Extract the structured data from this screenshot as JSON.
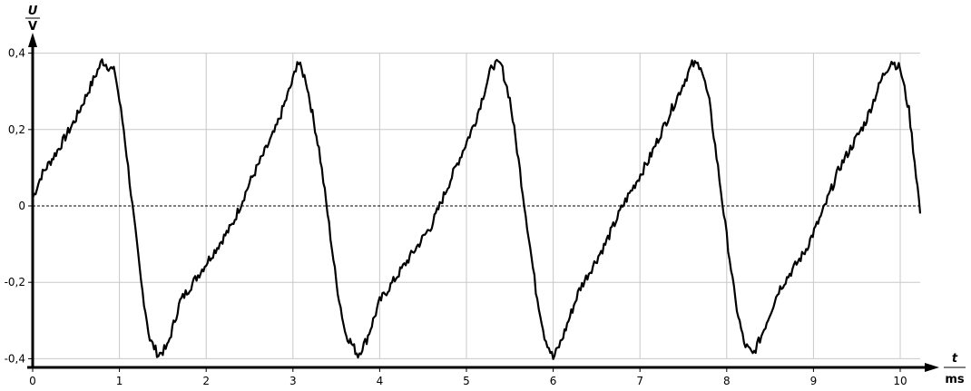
{
  "chart_data": {
    "type": "line",
    "title": "",
    "ylabel": {
      "symbol": "U",
      "unit": "V"
    },
    "xlabel": {
      "symbol": "t",
      "unit": "ms"
    },
    "xlim": [
      0,
      10.23
    ],
    "ylim": [
      -0.4,
      0.4
    ],
    "grid": true,
    "x_ticks": [
      0,
      1,
      2,
      3,
      4,
      5,
      6,
      7,
      8,
      9,
      10
    ],
    "x_tick_labels": [
      "0",
      "1",
      "2",
      "3",
      "4",
      "5",
      "6",
      "7",
      "8",
      "9",
      "10"
    ],
    "y_ticks": [
      0.4,
      0.2,
      0,
      -0.2,
      -0.4
    ],
    "y_tick_labels": [
      "0,4",
      "0,2",
      "0",
      "-0,2",
      "-0,4"
    ],
    "zero_line": "dotted",
    "line_color": "#000000",
    "grid_color": "#c8c8c8",
    "series": [
      {
        "x": [
          0,
          0.1,
          0.3,
          0.5,
          0.7,
          0.8,
          0.95,
          1.05,
          1.15,
          1.25,
          1.35,
          1.45,
          1.55,
          1.7,
          2.0,
          2.3,
          2.5,
          2.8,
          3.0,
          3.05,
          3.15,
          3.3,
          3.4,
          3.5,
          3.6,
          3.75,
          3.85,
          4.0,
          4.3,
          4.6,
          4.8,
          5.1,
          5.3,
          5.4,
          5.5,
          5.6,
          5.7,
          5.8,
          5.9,
          6.0,
          6.1,
          6.3,
          6.6,
          6.8,
          7.1,
          7.4,
          7.6,
          7.7,
          7.8,
          7.9,
          8.0,
          8.1,
          8.2,
          8.3,
          8.4,
          8.6,
          8.9,
          9.1,
          9.3,
          9.6,
          9.8,
          9.9,
          10.0,
          10.1,
          10.15,
          10.2,
          10.23
        ],
        "y": [
          0.02,
          0.08,
          0.15,
          0.23,
          0.33,
          0.38,
          0.35,
          0.2,
          0.0,
          -0.2,
          -0.35,
          -0.39,
          -0.37,
          -0.25,
          -0.15,
          -0.05,
          0.06,
          0.2,
          0.33,
          0.38,
          0.33,
          0.15,
          -0.02,
          -0.2,
          -0.33,
          -0.39,
          -0.35,
          -0.25,
          -0.15,
          -0.05,
          0.06,
          0.22,
          0.37,
          0.37,
          0.28,
          0.12,
          -0.05,
          -0.22,
          -0.34,
          -0.4,
          -0.35,
          -0.22,
          -0.1,
          0.0,
          0.12,
          0.27,
          0.37,
          0.37,
          0.27,
          0.1,
          -0.08,
          -0.25,
          -0.36,
          -0.39,
          -0.34,
          -0.22,
          -0.12,
          -0.02,
          0.1,
          0.22,
          0.34,
          0.38,
          0.36,
          0.25,
          0.15,
          0.05,
          -0.02
        ]
      }
    ]
  }
}
